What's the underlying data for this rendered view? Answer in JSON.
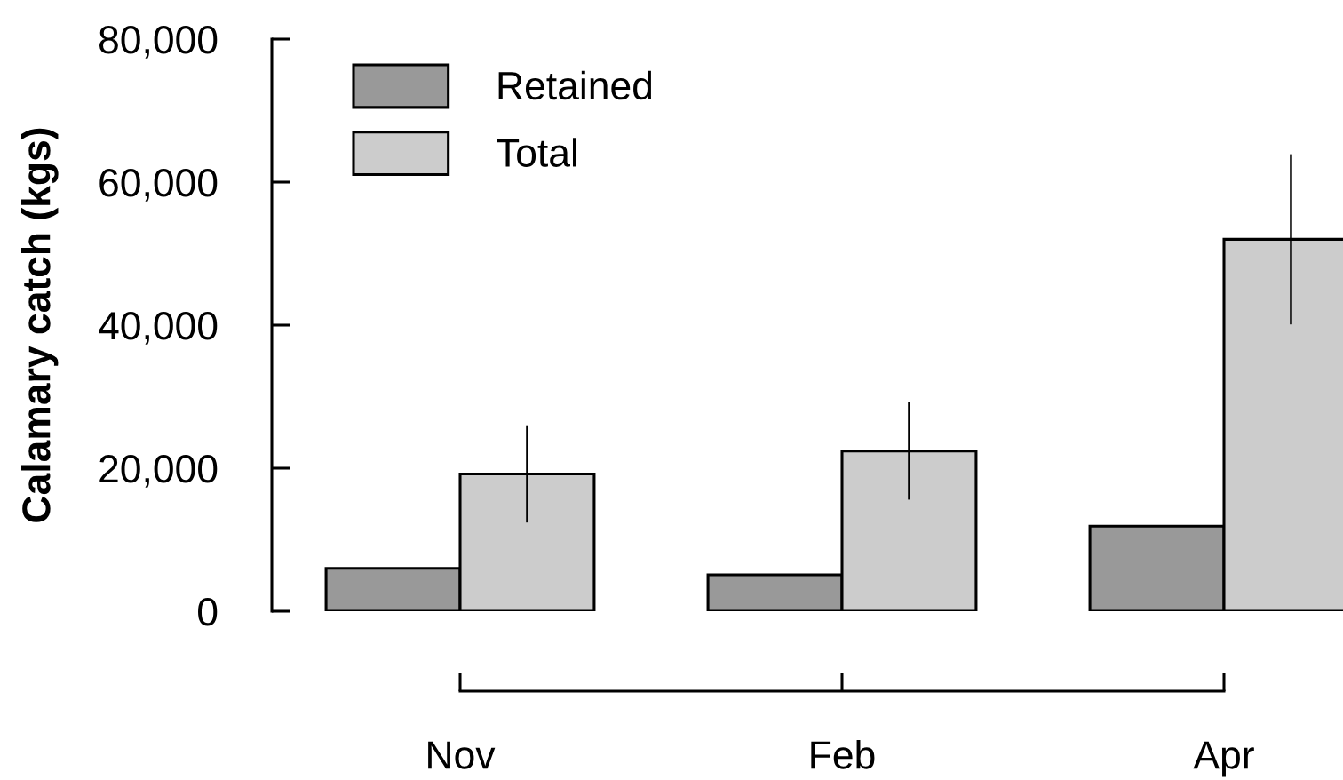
{
  "chart_data": {
    "type": "bar",
    "ylabel": "Calamary catch (kgs)",
    "categories": [
      "Nov",
      "Feb",
      "Apr"
    ],
    "series": [
      {
        "name": "Retained",
        "color": "#999999",
        "values": [
          6000,
          5100,
          11900
        ]
      },
      {
        "name": "Total",
        "color": "#cccccc",
        "values": [
          19200,
          22400,
          52000
        ],
        "errors": [
          6800,
          6800,
          11900
        ]
      }
    ],
    "ylim": [
      0,
      80000
    ],
    "yticks": [
      0,
      {
        "value": 20000,
        "label": "20,000"
      },
      {
        "value": 40000,
        "label": "40,000"
      },
      {
        "value": 60000,
        "label": "60,000"
      },
      {
        "value": 80000,
        "label": "80,000"
      }
    ],
    "legend": "top left"
  }
}
